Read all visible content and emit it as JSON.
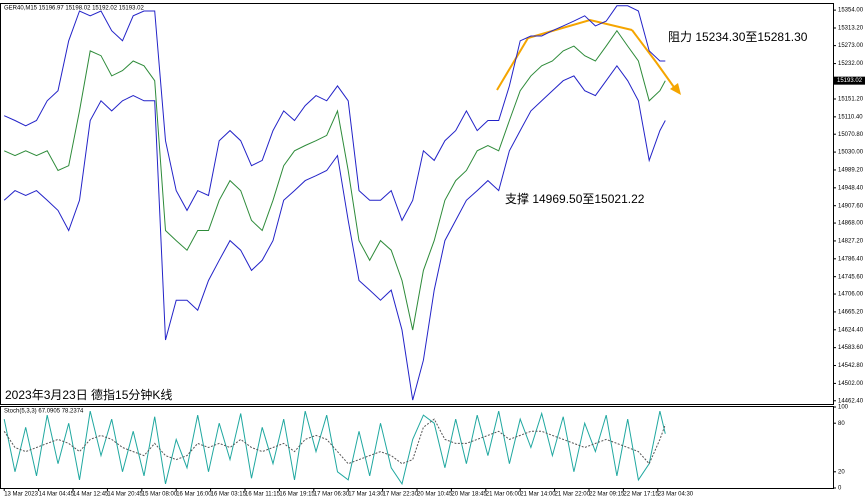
{
  "chart_data": [
    {
      "type": "line",
      "title": "GER40,M15  15196.97 15198.02 15192.02 15193.02",
      "annotations": [
        "阻力 15234.30至15281.30",
        "支撑 14969.50至15021.22",
        "2023年3月23日 德指15分钟K线"
      ],
      "xlim": [
        -3,
        771
      ],
      "ylim": [
        14455,
        15368
      ],
      "yticks": [
        {
          "value": 15354,
          "label": "15354.00"
        },
        {
          "value": 15313.2,
          "label": "15313.20"
        },
        {
          "value": 15273,
          "label": "15273.00"
        },
        {
          "value": 15232,
          "label": "15232.00"
        },
        {
          "value": 15151.2,
          "label": "15151.20"
        },
        {
          "value": 15110.4,
          "label": "15110.40"
        },
        {
          "value": 15070.8,
          "label": "15070.80"
        },
        {
          "value": 15030,
          "label": "15030.00"
        },
        {
          "value": 14989.2,
          "label": "14989.20"
        },
        {
          "value": 14948.4,
          "label": "14948.40"
        },
        {
          "value": 14907.6,
          "label": "14907.60"
        },
        {
          "value": 14868,
          "label": "14868.00"
        },
        {
          "value": 14827.2,
          "label": "14827.20"
        },
        {
          "value": 14786.4,
          "label": "14786.40"
        },
        {
          "value": 14745.6,
          "label": "14745.60"
        },
        {
          "value": 14706,
          "label": "14706.00"
        },
        {
          "value": 14665.2,
          "label": "14665.20"
        },
        {
          "value": 14624.4,
          "label": "14624.40"
        },
        {
          "value": 14583.6,
          "label": "14583.60"
        },
        {
          "value": 14542.8,
          "label": "14542.80"
        },
        {
          "value": 14502,
          "label": "14502.00"
        },
        {
          "value": 14462.4,
          "label": "14462.40"
        }
      ],
      "current_price": {
        "value": 15193.02,
        "label": "15193.02"
      },
      "x": [
        0,
        10,
        20,
        30,
        40,
        50,
        60,
        70,
        80,
        90,
        100,
        110,
        120,
        130,
        140,
        150,
        160,
        170,
        180,
        190,
        200,
        210,
        220,
        230,
        240,
        250,
        260,
        270,
        280,
        290,
        300,
        310,
        320,
        330,
        340,
        350,
        360,
        370,
        380,
        390,
        400,
        410,
        420,
        430,
        440,
        450,
        460,
        470,
        480,
        490,
        500,
        510,
        520,
        530,
        540,
        550,
        560,
        570,
        580,
        590,
        600,
        610,
        615
      ],
      "series": [
        {
          "name": "Price",
          "color": "#2e8b3a",
          "values": [
            15033,
            15022,
            15033,
            15022,
            15033,
            14988,
            14999,
            15124,
            15261,
            15250,
            15204,
            15216,
            15238,
            15227,
            15193,
            14851,
            14828,
            14806,
            14851,
            14851,
            14920,
            14965,
            14942,
            14874,
            14851,
            14920,
            14999,
            15033,
            15045,
            15056,
            15068,
            15124,
            14988,
            14828,
            14783,
            14828,
            14806,
            14737,
            14624,
            14760,
            14828,
            14920,
            14965,
            14988,
            15033,
            15045,
            15033,
            15102,
            15170,
            15204,
            15227,
            15238,
            15261,
            15272,
            15250,
            15238,
            15272,
            15307,
            15272,
            15238,
            15147,
            15170,
            15193.02
          ]
        },
        {
          "name": "Upper Band",
          "color": "#2323c8",
          "values": [
            15113,
            15102,
            15090,
            15102,
            15147,
            15170,
            15284,
            15352,
            15341,
            15352,
            15307,
            15284,
            15341,
            15352,
            15352,
            15056,
            14942,
            14897,
            14942,
            14931,
            15056,
            15079,
            15056,
            14999,
            15011,
            15079,
            15124,
            15102,
            15136,
            15159,
            15147,
            15181,
            15147,
            14942,
            14920,
            14920,
            14942,
            14874,
            14920,
            15033,
            15011,
            15056,
            15079,
            15124,
            15079,
            15102,
            15102,
            15181,
            15284,
            15295,
            15295,
            15307,
            15318,
            15329,
            15341,
            15318,
            15329,
            15364,
            15364,
            15352,
            15261,
            15238,
            15238
          ]
        },
        {
          "name": "Lower Band",
          "color": "#2323c8",
          "values": [
            14920,
            14942,
            14931,
            14942,
            14920,
            14897,
            14851,
            14920,
            15102,
            15147,
            15124,
            15147,
            15159,
            15147,
            15147,
            14601,
            14692,
            14692,
            14669,
            14737,
            14783,
            14828,
            14806,
            14760,
            14783,
            14828,
            14920,
            14942,
            14965,
            14976,
            14988,
            15022,
            14874,
            14737,
            14715,
            14692,
            14715,
            14624,
            14464,
            14555,
            14715,
            14828,
            14874,
            14920,
            14942,
            14965,
            14942,
            15033,
            15079,
            15124,
            15147,
            15170,
            15193,
            15204,
            15170,
            15159,
            15193,
            15227,
            15193,
            15147,
            15011,
            15079,
            15102
          ]
        }
      ]
    },
    {
      "type": "line",
      "title": "Stoch(5,3,3) 67.0905 78.2374",
      "xlim": [
        -3,
        771
      ],
      "ylim": [
        0,
        100
      ],
      "yticks": [
        100,
        80,
        20,
        0
      ],
      "xticks": [
        {
          "value": 0,
          "label": "13 Mar 2023"
        },
        {
          "value": 32,
          "label": "14 Mar 04:45"
        },
        {
          "value": 64,
          "label": "14 Mar 12:45"
        },
        {
          "value": 96,
          "label": "14 Mar 20:45"
        },
        {
          "value": 128,
          "label": "15 Mar 08:00"
        },
        {
          "value": 160,
          "label": "16 Mar 16:00"
        },
        {
          "value": 192,
          "label": "16 Mar 03:15"
        },
        {
          "value": 224,
          "label": "16 Mar 11:15"
        },
        {
          "value": 256,
          "label": "16 Mar 19:15"
        },
        {
          "value": 288,
          "label": "17 Mar 06:30"
        },
        {
          "value": 320,
          "label": "17 Mar 14:30"
        },
        {
          "value": 352,
          "label": "17 Mar 22:30"
        },
        {
          "value": 384,
          "label": "20 Mar 10:45"
        },
        {
          "value": 416,
          "label": "20 Mar 18:45"
        },
        {
          "value": 448,
          "label": "21 Mar 06:00"
        },
        {
          "value": 480,
          "label": "21 Mar 14:00"
        },
        {
          "value": 512,
          "label": "21 Mar 22:00"
        },
        {
          "value": 544,
          "label": "22 Mar 09:15"
        },
        {
          "value": 576,
          "label": "22 Mar 17:15"
        },
        {
          "value": 608,
          "label": "23 Mar 04:30"
        }
      ],
      "x": [
        0,
        10,
        20,
        30,
        40,
        50,
        60,
        70,
        80,
        90,
        100,
        110,
        120,
        130,
        140,
        150,
        160,
        170,
        180,
        190,
        200,
        210,
        220,
        230,
        240,
        250,
        260,
        270,
        280,
        290,
        300,
        310,
        320,
        330,
        340,
        350,
        360,
        370,
        380,
        390,
        400,
        410,
        420,
        430,
        440,
        450,
        460,
        470,
        480,
        490,
        500,
        510,
        520,
        530,
        540,
        550,
        560,
        570,
        580,
        590,
        600,
        610,
        615
      ],
      "series": [
        {
          "name": "Main",
          "color": "#20a8a0",
          "values": [
            85,
            20,
            75,
            15,
            90,
            30,
            80,
            10,
            95,
            40,
            85,
            20,
            70,
            15,
            88,
            5,
            60,
            25,
            90,
            20,
            80,
            35,
            92,
            12,
            75,
            30,
            85,
            10,
            95,
            45,
            90,
            20,
            10,
            70,
            15,
            80,
            25,
            5,
            60,
            90,
            80,
            25,
            85,
            30,
            90,
            40,
            95,
            30,
            85,
            50,
            92,
            40,
            88,
            20,
            80,
            45,
            90,
            15,
            85,
            10,
            30,
            95,
            67.0905
          ]
        },
        {
          "name": "Signal",
          "color": "#555555",
          "dashed": true,
          "values": [
            70,
            50,
            45,
            50,
            55,
            60,
            55,
            45,
            60,
            65,
            60,
            50,
            45,
            40,
            55,
            40,
            35,
            40,
            55,
            50,
            55,
            50,
            60,
            50,
            45,
            50,
            55,
            45,
            60,
            65,
            60,
            45,
            30,
            35,
            40,
            45,
            40,
            30,
            35,
            75,
            85,
            60,
            55,
            55,
            60,
            65,
            70,
            60,
            65,
            70,
            70,
            65,
            60,
            55,
            50,
            55,
            60,
            55,
            50,
            45,
            30,
            60,
            78.2374
          ]
        }
      ]
    }
  ]
}
